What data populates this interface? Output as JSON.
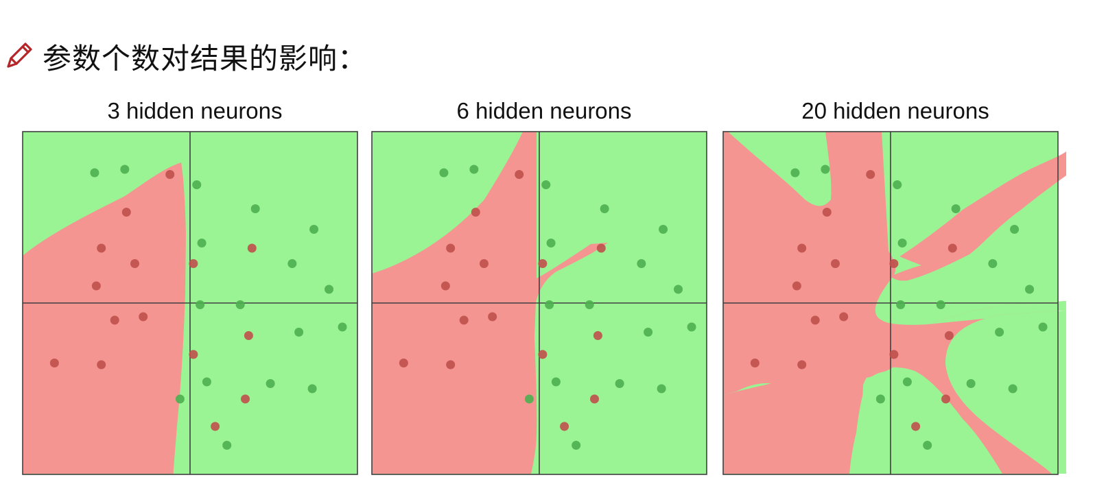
{
  "heading": {
    "icon": "pencil-icon",
    "text": "参数个数对结果的影响："
  },
  "colors": {
    "red_region": "#f49592",
    "green_region": "#9af493",
    "red_point": "#c0504d",
    "green_point": "#4caf50",
    "frame": "#3f3f3f"
  },
  "chart_data": [
    {
      "type": "scatter",
      "title": "3 hidden neurons",
      "xlim": [
        -1,
        1
      ],
      "ylim": [
        -1,
        1
      ],
      "grid": false,
      "axes_cross_at": [
        0,
        0
      ],
      "series": [
        {
          "class": "red",
          "points": [
            [
              -0.12,
              0.75
            ],
            [
              -0.38,
              0.53
            ],
            [
              -0.53,
              0.32
            ],
            [
              -0.33,
              0.23
            ],
            [
              0.02,
              0.23
            ],
            [
              -0.56,
              0.1
            ],
            [
              -0.45,
              -0.1
            ],
            [
              -0.28,
              -0.08
            ],
            [
              -0.81,
              -0.35
            ],
            [
              -0.53,
              -0.36
            ],
            [
              0.37,
              0.32
            ],
            [
              0.35,
              -0.19
            ],
            [
              0.02,
              -0.3
            ],
            [
              0.33,
              -0.56
            ],
            [
              0.15,
              -0.72
            ]
          ]
        },
        {
          "class": "green",
          "points": [
            [
              -0.57,
              0.76
            ],
            [
              -0.39,
              0.78
            ],
            [
              0.04,
              0.69
            ],
            [
              0.39,
              0.55
            ],
            [
              0.74,
              0.43
            ],
            [
              0.07,
              0.35
            ],
            [
              0.61,
              0.23
            ],
            [
              0.83,
              0.08
            ],
            [
              0.06,
              -0.01
            ],
            [
              0.3,
              -0.01
            ],
            [
              0.65,
              -0.17
            ],
            [
              0.91,
              -0.14
            ],
            [
              0.1,
              -0.46
            ],
            [
              0.48,
              -0.47
            ],
            [
              0.73,
              -0.5
            ],
            [
              -0.06,
              -0.56
            ],
            [
              0.22,
              -0.83
            ]
          ]
        }
      ]
    },
    {
      "type": "scatter",
      "title": "6 hidden neurons",
      "xlim": [
        -1,
        1
      ],
      "ylim": [
        -1,
        1
      ],
      "grid": false,
      "axes_cross_at": [
        0,
        0
      ],
      "series": [
        {
          "class": "red",
          "points": [
            [
              -0.12,
              0.75
            ],
            [
              -0.38,
              0.53
            ],
            [
              -0.53,
              0.32
            ],
            [
              -0.33,
              0.23
            ],
            [
              0.02,
              0.23
            ],
            [
              -0.56,
              0.1
            ],
            [
              -0.45,
              -0.1
            ],
            [
              -0.28,
              -0.08
            ],
            [
              -0.81,
              -0.35
            ],
            [
              -0.53,
              -0.36
            ],
            [
              0.37,
              0.32
            ],
            [
              0.35,
              -0.19
            ],
            [
              0.02,
              -0.3
            ],
            [
              0.33,
              -0.56
            ],
            [
              0.15,
              -0.72
            ]
          ]
        },
        {
          "class": "green",
          "points": [
            [
              -0.57,
              0.76
            ],
            [
              -0.39,
              0.78
            ],
            [
              0.04,
              0.69
            ],
            [
              0.39,
              0.55
            ],
            [
              0.74,
              0.43
            ],
            [
              0.07,
              0.35
            ],
            [
              0.61,
              0.23
            ],
            [
              0.83,
              0.08
            ],
            [
              0.06,
              -0.01
            ],
            [
              0.3,
              -0.01
            ],
            [
              0.65,
              -0.17
            ],
            [
              0.91,
              -0.14
            ],
            [
              0.1,
              -0.46
            ],
            [
              0.48,
              -0.47
            ],
            [
              0.73,
              -0.5
            ],
            [
              -0.06,
              -0.56
            ],
            [
              0.22,
              -0.83
            ]
          ]
        }
      ]
    },
    {
      "type": "scatter",
      "title": "20 hidden neurons",
      "xlim": [
        -1,
        1
      ],
      "ylim": [
        -1,
        1
      ],
      "grid": false,
      "axes_cross_at": [
        0,
        0
      ],
      "series": [
        {
          "class": "red",
          "points": [
            [
              -0.12,
              0.75
            ],
            [
              -0.38,
              0.53
            ],
            [
              -0.53,
              0.32
            ],
            [
              -0.33,
              0.23
            ],
            [
              0.02,
              0.23
            ],
            [
              -0.56,
              0.1
            ],
            [
              -0.45,
              -0.1
            ],
            [
              -0.28,
              -0.08
            ],
            [
              -0.81,
              -0.35
            ],
            [
              -0.53,
              -0.36
            ],
            [
              0.37,
              0.32
            ],
            [
              0.35,
              -0.19
            ],
            [
              0.02,
              -0.3
            ],
            [
              0.33,
              -0.56
            ],
            [
              0.15,
              -0.72
            ]
          ]
        },
        {
          "class": "green",
          "points": [
            [
              -0.57,
              0.76
            ],
            [
              -0.39,
              0.78
            ],
            [
              0.04,
              0.69
            ],
            [
              0.39,
              0.55
            ],
            [
              0.74,
              0.43
            ],
            [
              0.07,
              0.35
            ],
            [
              0.61,
              0.23
            ],
            [
              0.83,
              0.08
            ],
            [
              0.06,
              -0.01
            ],
            [
              0.3,
              -0.01
            ],
            [
              0.65,
              -0.17
            ],
            [
              0.91,
              -0.14
            ],
            [
              0.1,
              -0.46
            ],
            [
              0.48,
              -0.47
            ],
            [
              0.73,
              -0.5
            ],
            [
              -0.06,
              -0.56
            ],
            [
              0.22,
              -0.83
            ]
          ]
        }
      ]
    }
  ]
}
